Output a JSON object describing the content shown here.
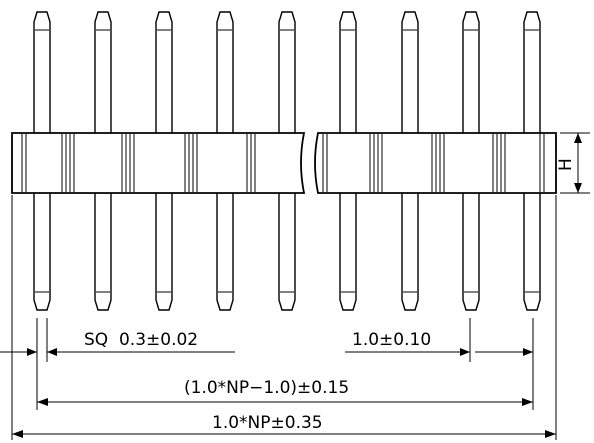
{
  "dimensions": {
    "pin_square": "SQ  0.3±0.02",
    "pitch": "1.0±0.10",
    "pin_span": "(1.0*NP−1.0)±0.15",
    "overall_length": "1.0*NP±0.35",
    "height": "H"
  }
}
